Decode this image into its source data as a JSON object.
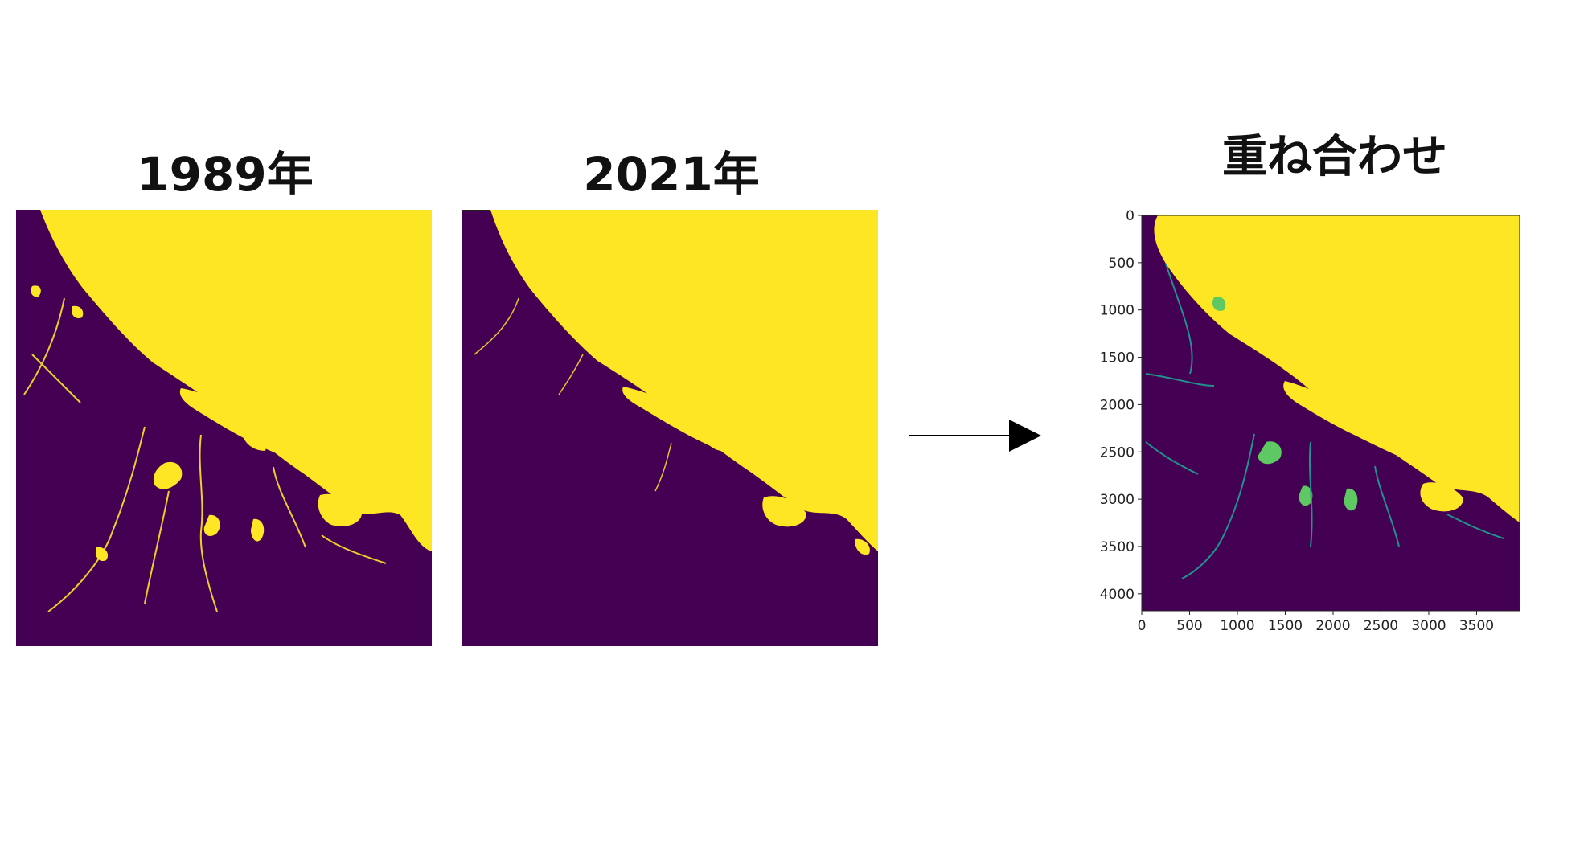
{
  "titles": {
    "left": "1989年",
    "middle": "2021年",
    "right": "重ね合わせ"
  },
  "colors": {
    "land": "#440154",
    "water": "#fde725",
    "shallow": "#21918c",
    "mid": "#5ec962",
    "arrow": "#000000",
    "axis_text": "#222222"
  },
  "overlay_axes": {
    "x_ticks": [
      "0",
      "500",
      "1000",
      "1500",
      "2000",
      "2500",
      "3000",
      "3500"
    ],
    "y_ticks": [
      "0",
      "500",
      "1000",
      "1500",
      "2000",
      "2500",
      "3000",
      "3500",
      "4000"
    ]
  },
  "icons": {
    "arrow": "right-arrow-icon"
  }
}
